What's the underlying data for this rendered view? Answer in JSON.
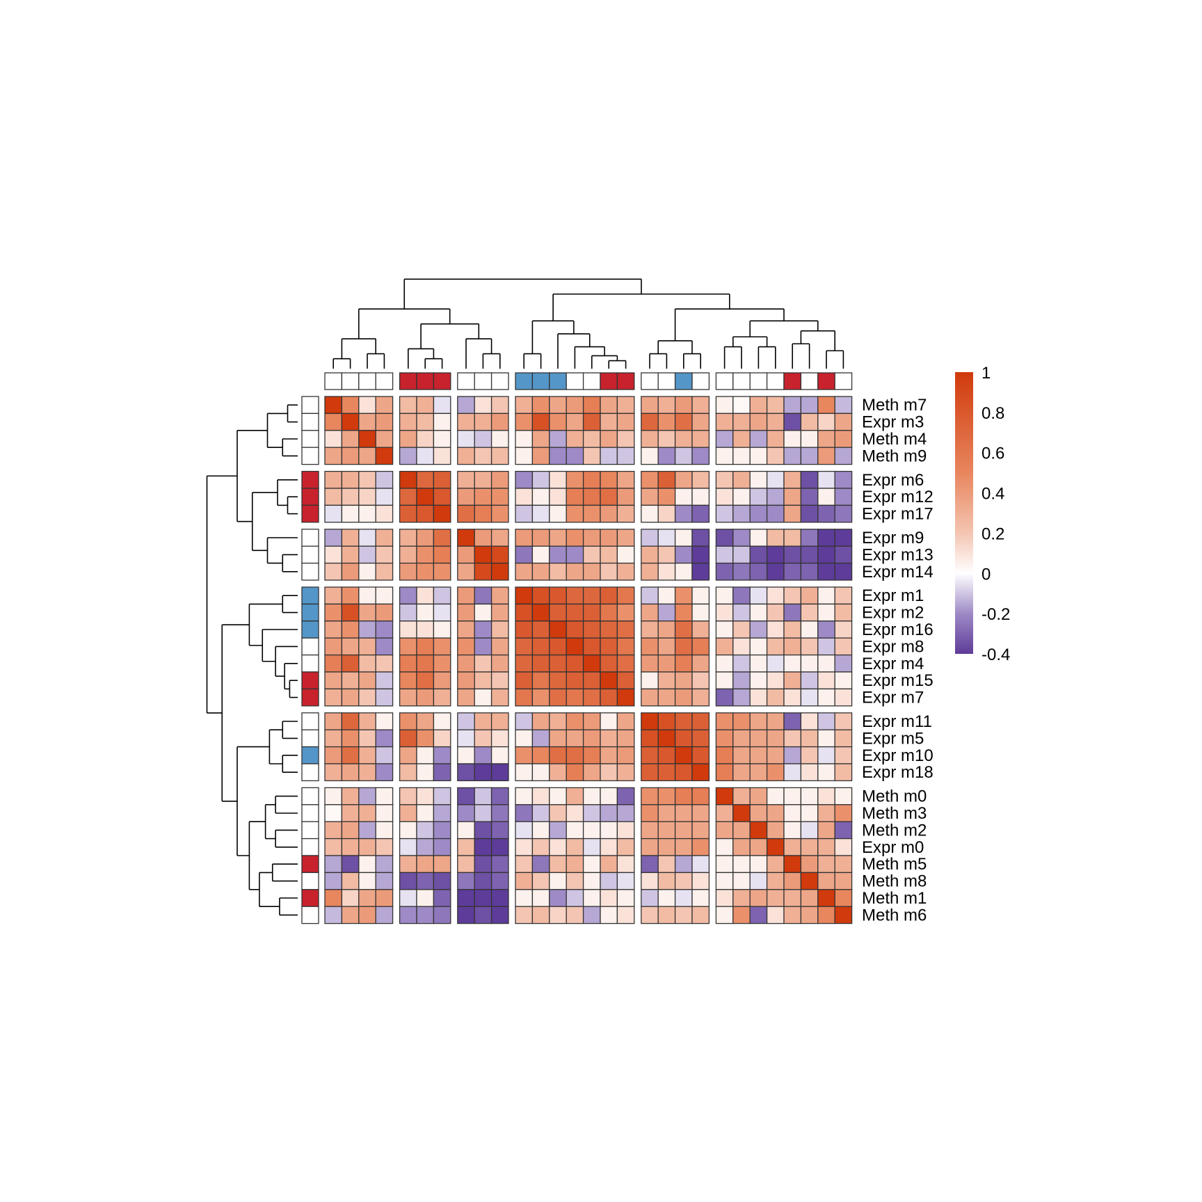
{
  "chart_data": {
    "type": "heatmap",
    "row_labels": [
      "Meth m7",
      "Expr m3",
      "Meth m4",
      "Meth m9",
      "Expr m6",
      "Expr m12",
      "Expr m17",
      "Expr m9",
      "Expr m13",
      "Expr m14",
      "Expr m1",
      "Expr m2",
      "Expr m16",
      "Expr m8",
      "Expr m4",
      "Expr m15",
      "Expr m7",
      "Expr m11",
      "Expr m5",
      "Expr m10",
      "Expr m18",
      "Meth m0",
      "Meth m3",
      "Meth m2",
      "Expr m0",
      "Meth m5",
      "Meth m8",
      "Meth m1",
      "Meth m6"
    ],
    "row_groups": [
      4,
      3,
      3,
      7,
      4,
      8
    ],
    "col_groups": [
      4,
      3,
      3,
      7,
      4,
      8
    ],
    "row_annotation": [
      "none",
      "none",
      "none",
      "none",
      "red",
      "red",
      "red",
      "none",
      "none",
      "none",
      "blue",
      "blue",
      "blue",
      "none",
      "none",
      "red",
      "red",
      "none",
      "none",
      "blue",
      "none",
      "none",
      "none",
      "none",
      "none",
      "red",
      "none",
      "red",
      "none"
    ],
    "col_annotation": [
      "none",
      "none",
      "none",
      "none",
      "red",
      "red",
      "red",
      "none",
      "none",
      "none",
      "blue",
      "blue",
      "blue",
      "none",
      "none",
      "red",
      "red",
      "none",
      "none",
      "blue",
      "none",
      "none",
      "none",
      "none",
      "none",
      "red",
      "none",
      "red",
      "none"
    ],
    "annotation_colors": {
      "red": "#c8222d",
      "blue": "#5496c8",
      "none": "#ffffff"
    },
    "colorscale": {
      "min": -0.4,
      "max": 1,
      "stops": [
        {
          "value": -0.4,
          "color": "#5e3c99"
        },
        {
          "value": -0.2,
          "color": "#9e8ac6"
        },
        {
          "value": 0,
          "color": "#ffffff"
        },
        {
          "value": 0.2,
          "color": "#f4c5b2"
        },
        {
          "value": 0.5,
          "color": "#e8865e"
        },
        {
          "value": 1,
          "color": "#d03a0c"
        }
      ],
      "ticks": [
        "1",
        "0.8",
        "0.6",
        "0.4",
        "0.2",
        "0",
        "-0.2",
        "-0.4"
      ]
    },
    "values": [
      [
        1,
        0.5,
        0.1,
        0.35,
        0.25,
        0.3,
        -0.05,
        -0.15,
        0.1,
        0.2,
        0.3,
        0.45,
        0.35,
        0.4,
        0.55,
        0.35,
        0.3,
        0.35,
        0.3,
        0.4,
        0.3,
        0.05,
        0.02,
        0.3,
        0.25,
        -0.15,
        -0.15,
        0.5,
        -0.12
      ],
      [
        0.5,
        1,
        0.35,
        0.4,
        0.3,
        0.25,
        0.05,
        0.3,
        0.3,
        0.4,
        0.45,
        0.85,
        0.45,
        0.35,
        0.75,
        0.3,
        0.35,
        0.7,
        0.45,
        0.65,
        0.35,
        0.3,
        0.3,
        0.35,
        0.3,
        -0.35,
        0.25,
        0.15,
        0.35
      ],
      [
        0.1,
        0.35,
        1,
        0.35,
        0.35,
        0.15,
        0.05,
        -0.05,
        -0.1,
        0.05,
        0.05,
        0.35,
        -0.15,
        0.3,
        0.25,
        0.35,
        0.2,
        0.3,
        0.2,
        0.3,
        0.3,
        -0.15,
        0.3,
        -0.15,
        0.3,
        0.05,
        0.05,
        0.35,
        0.4
      ],
      [
        0.35,
        0.4,
        0.35,
        1,
        -0.15,
        -0.05,
        0.1,
        0.3,
        0.2,
        0.25,
        0.05,
        0.4,
        -0.2,
        -0.2,
        0.2,
        -0.1,
        -0.1,
        0.05,
        -0.2,
        -0.1,
        -0.2,
        0.05,
        0.05,
        0.05,
        0.2,
        -0.15,
        -0.15,
        0.4,
        -0.15
      ],
      [
        0.3,
        0.3,
        0.2,
        -0.1,
        1,
        0.7,
        0.75,
        0.3,
        0.3,
        0.4,
        -0.2,
        -0.1,
        0.1,
        0.45,
        0.55,
        0.5,
        0.35,
        0.45,
        0.75,
        0.35,
        0.25,
        0.2,
        0.3,
        0.05,
        -0.05,
        0.3,
        -0.35,
        -0.05,
        -0.2
      ],
      [
        0.25,
        0.2,
        0.15,
        -0.05,
        0.7,
        1,
        0.8,
        0.4,
        0.45,
        0.45,
        0.1,
        0.05,
        0.1,
        0.55,
        0.6,
        0.65,
        0.4,
        0.35,
        0.45,
        0.05,
        0.05,
        0.1,
        0.05,
        -0.1,
        -0.15,
        0.35,
        -0.3,
        0.05,
        -0.2
      ],
      [
        -0.05,
        0.05,
        0.05,
        0.1,
        0.75,
        0.8,
        1,
        0.65,
        0.55,
        0.45,
        -0.1,
        -0.05,
        0.05,
        0.45,
        0.45,
        0.4,
        0.3,
        0.05,
        0.15,
        -0.2,
        -0.3,
        -0.1,
        -0.15,
        -0.2,
        -0.2,
        0.35,
        -0.35,
        -0.3,
        -0.25
      ],
      [
        -0.15,
        0.3,
        -0.05,
        0.3,
        0.3,
        0.4,
        0.65,
        1,
        0.4,
        0.35,
        0.4,
        0.4,
        0.35,
        0.45,
        0.4,
        0.4,
        0.35,
        -0.1,
        -0.05,
        0.05,
        -0.35,
        -0.35,
        -0.2,
        0.05,
        0.25,
        0.25,
        -0.25,
        -0.4,
        -0.4
      ],
      [
        0.1,
        0.3,
        -0.1,
        0.2,
        0.3,
        0.45,
        0.55,
        0.4,
        1,
        0.9,
        -0.25,
        0.05,
        -0.2,
        -0.2,
        0.2,
        0.25,
        0.05,
        0.3,
        0.2,
        -0.2,
        -0.4,
        -0.1,
        -0.1,
        -0.35,
        -0.45,
        -0.35,
        -0.35,
        -0.4,
        -0.35
      ],
      [
        0.2,
        0.4,
        0.05,
        0.25,
        0.4,
        0.45,
        0.45,
        0.35,
        0.9,
        1,
        0.35,
        0.35,
        0.25,
        0.35,
        0.35,
        0.2,
        0.3,
        0.3,
        0.1,
        0.05,
        -0.4,
        -0.3,
        -0.25,
        -0.3,
        -0.4,
        -0.3,
        -0.3,
        -0.4,
        -0.4
      ],
      [
        0.3,
        0.45,
        0.05,
        0.05,
        -0.2,
        0.1,
        -0.1,
        0.4,
        -0.25,
        0.35,
        1,
        0.85,
        0.8,
        0.7,
        0.7,
        0.75,
        0.6,
        -0.1,
        0.05,
        0.45,
        0.05,
        0.05,
        -0.25,
        -0.05,
        0.1,
        0.2,
        0.3,
        0.05,
        0.2
      ],
      [
        0.45,
        0.85,
        0.35,
        0.4,
        -0.1,
        0.05,
        -0.05,
        0.4,
        0.05,
        0.35,
        0.85,
        1,
        0.75,
        0.75,
        0.75,
        0.6,
        0.45,
        0.35,
        -0.15,
        0.5,
        0.05,
        0.1,
        -0.1,
        0.05,
        0.2,
        -0.25,
        0.2,
        0.05,
        0.25
      ],
      [
        0.35,
        0.45,
        -0.15,
        -0.2,
        0.1,
        0.1,
        0.05,
        0.35,
        -0.2,
        0.25,
        0.8,
        0.75,
        1,
        0.8,
        0.75,
        0.7,
        0.65,
        0.3,
        0.35,
        0.65,
        0.3,
        0.05,
        0.2,
        -0.15,
        0.1,
        0.25,
        0.05,
        -0.2,
        0.15
      ],
      [
        0.4,
        0.35,
        0.3,
        -0.2,
        0.45,
        0.55,
        0.45,
        0.45,
        -0.2,
        0.35,
        0.7,
        0.75,
        0.8,
        1,
        0.8,
        0.75,
        0.6,
        0.45,
        0.35,
        0.65,
        0.55,
        0.3,
        0.1,
        0.05,
        0.25,
        0.3,
        0.2,
        -0.1,
        0.2
      ],
      [
        0.55,
        0.75,
        0.25,
        0.2,
        0.55,
        0.6,
        0.45,
        0.4,
        0.2,
        0.35,
        0.7,
        0.75,
        0.75,
        0.8,
        1,
        0.75,
        0.65,
        0.4,
        0.4,
        0.55,
        0.35,
        0.05,
        -0.1,
        0.05,
        -0.05,
        0.05,
        0.05,
        0.05,
        -0.15
      ],
      [
        0.35,
        0.3,
        0.35,
        -0.1,
        0.5,
        0.65,
        0.4,
        0.4,
        0.25,
        0.2,
        0.75,
        0.6,
        0.7,
        0.75,
        0.75,
        1,
        0.75,
        0.05,
        0.3,
        0.35,
        0.2,
        0.05,
        -0.15,
        0.05,
        0.1,
        0.3,
        -0.1,
        0.1,
        0.05
      ],
      [
        0.3,
        0.35,
        0.2,
        -0.1,
        0.35,
        0.4,
        0.3,
        0.35,
        0.05,
        0.3,
        0.6,
        0.45,
        0.65,
        0.6,
        0.65,
        0.75,
        1,
        0.35,
        0.35,
        0.4,
        0.3,
        -0.3,
        -0.15,
        0.1,
        0.25,
        0.1,
        -0.05,
        0.05,
        0.1
      ],
      [
        0.35,
        0.7,
        0.3,
        0.05,
        0.45,
        0.35,
        0.05,
        -0.1,
        0.3,
        0.3,
        -0.1,
        0.35,
        0.3,
        0.45,
        0.4,
        0.05,
        0.35,
        1,
        0.85,
        0.75,
        0.75,
        0.45,
        0.45,
        0.35,
        0.35,
        -0.3,
        0.1,
        -0.1,
        0.2
      ],
      [
        0.3,
        0.45,
        0.2,
        -0.2,
        0.75,
        0.45,
        0.15,
        -0.05,
        0.2,
        0.1,
        0.05,
        -0.15,
        0.35,
        0.35,
        0.4,
        0.3,
        0.35,
        0.85,
        1,
        0.8,
        0.75,
        0.45,
        0.35,
        0.35,
        0.35,
        0.2,
        0.25,
        0.05,
        0.25
      ],
      [
        0.4,
        0.65,
        0.3,
        -0.1,
        0.35,
        0.05,
        -0.2,
        0.05,
        -0.2,
        0.05,
        0.45,
        0.5,
        0.65,
        0.65,
        0.55,
        0.35,
        0.4,
        0.75,
        0.8,
        1,
        0.8,
        0.55,
        0.35,
        0.35,
        0.35,
        -0.15,
        0.2,
        -0.05,
        0.2
      ],
      [
        0.3,
        0.35,
        0.3,
        -0.2,
        0.25,
        0.05,
        -0.3,
        -0.35,
        -0.4,
        -0.4,
        0.05,
        0.05,
        0.3,
        0.55,
        0.35,
        0.2,
        0.3,
        0.75,
        0.75,
        0.8,
        1,
        0.55,
        0.35,
        0.35,
        0.45,
        -0.05,
        0.1,
        0.05,
        0.25
      ],
      [
        0.05,
        0.3,
        -0.15,
        0.05,
        0.2,
        0.1,
        -0.1,
        -0.35,
        -0.1,
        -0.3,
        0.05,
        0.1,
        0.05,
        0.3,
        0.05,
        0.05,
        -0.3,
        0.45,
        0.45,
        0.55,
        0.55,
        1,
        0.3,
        0.35,
        0.05,
        0.05,
        0.05,
        0.1,
        0.05
      ],
      [
        0.02,
        0.3,
        0.3,
        0.05,
        0.3,
        0.05,
        -0.15,
        -0.2,
        -0.1,
        -0.25,
        -0.25,
        -0.1,
        0.2,
        0.1,
        -0.1,
        -0.15,
        -0.15,
        0.45,
        0.35,
        0.35,
        0.35,
        0.3,
        1,
        0.35,
        0.35,
        0.05,
        0.05,
        0.3,
        0.45
      ],
      [
        0.3,
        0.35,
        -0.15,
        0.05,
        0.05,
        -0.1,
        -0.2,
        0.05,
        -0.35,
        -0.3,
        -0.05,
        0.05,
        -0.15,
        0.05,
        0.05,
        0.05,
        0.1,
        0.35,
        0.35,
        0.35,
        0.35,
        0.35,
        0.35,
        1,
        0.35,
        0.05,
        -0.05,
        0.35,
        -0.3
      ],
      [
        0.25,
        0.3,
        0.3,
        0.2,
        -0.05,
        -0.15,
        -0.2,
        0.25,
        -0.45,
        -0.4,
        0.1,
        0.2,
        0.1,
        0.25,
        -0.05,
        0.1,
        0.25,
        0.35,
        0.35,
        0.35,
        0.45,
        0.05,
        0.35,
        0.35,
        1,
        0.3,
        0.3,
        0.3,
        0.1
      ],
      [
        -0.15,
        -0.35,
        0.05,
        -0.15,
        0.3,
        0.35,
        0.35,
        0.25,
        -0.35,
        -0.3,
        0.2,
        -0.25,
        0.25,
        0.3,
        0.05,
        0.3,
        0.1,
        -0.3,
        0.2,
        -0.15,
        -0.05,
        0.05,
        0.05,
        0.05,
        0.3,
        1,
        0.4,
        0.3,
        0.3
      ],
      [
        -0.15,
        0.25,
        0.05,
        -0.15,
        -0.35,
        -0.3,
        -0.35,
        -0.25,
        -0.35,
        -0.3,
        0.3,
        0.2,
        0.05,
        0.2,
        0.05,
        -0.1,
        -0.05,
        0.1,
        0.25,
        0.2,
        0.1,
        0.05,
        0.05,
        -0.05,
        0.3,
        0.4,
        1,
        0.35,
        0.35
      ],
      [
        0.5,
        0.15,
        0.35,
        0.4,
        -0.05,
        0.05,
        -0.3,
        -0.4,
        -0.4,
        -0.4,
        0.05,
        0.05,
        -0.2,
        -0.1,
        0.05,
        0.1,
        0.05,
        -0.1,
        0.05,
        -0.05,
        0.05,
        0.1,
        0.3,
        0.35,
        0.3,
        0.3,
        0.35,
        1,
        0.5
      ],
      [
        -0.12,
        0.35,
        0.4,
        -0.15,
        -0.2,
        -0.2,
        -0.25,
        -0.4,
        -0.35,
        -0.4,
        0.2,
        0.25,
        0.15,
        0.2,
        -0.15,
        0.05,
        0.1,
        0.2,
        0.25,
        0.2,
        0.25,
        0.05,
        0.45,
        -0.3,
        0.1,
        0.3,
        0.35,
        0.5,
        1
      ]
    ]
  }
}
